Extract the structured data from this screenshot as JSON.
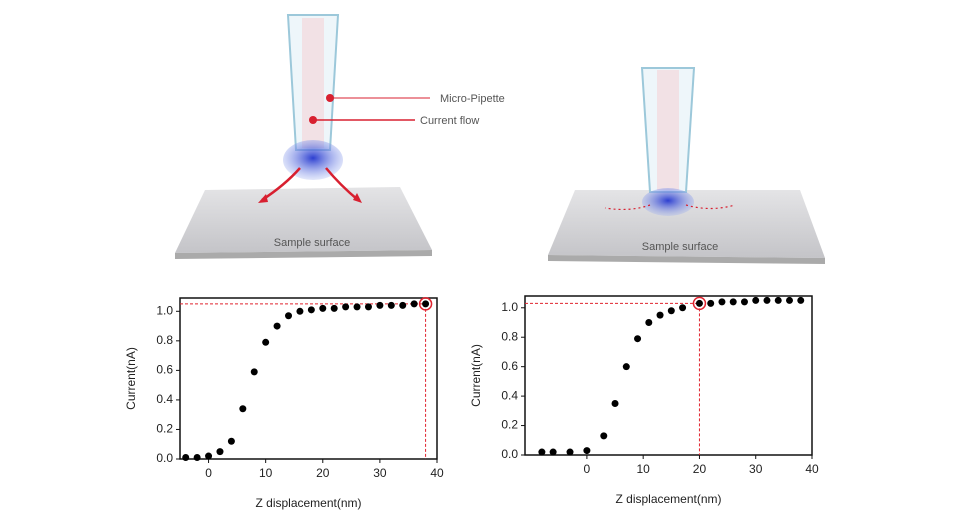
{
  "illustrations": [
    {
      "labels": [
        "Micro-Pipette",
        "Current flow",
        "Sample surface"
      ]
    },
    {
      "labels": [
        "Sample surface"
      ]
    }
  ],
  "chart_data": [
    {
      "type": "scatter",
      "x_label": "Z displacement(nm)",
      "y_label": "Current(nA)",
      "color": "#000000",
      "reference_color": "#e0242f",
      "x": [
        -4,
        -2,
        0,
        2,
        4,
        6,
        8,
        10,
        12,
        14,
        16,
        18,
        20,
        22,
        24,
        26,
        28,
        30,
        32,
        34,
        36,
        38
      ],
      "values": [
        0.01,
        0.01,
        0.02,
        0.05,
        0.12,
        0.34,
        0.59,
        0.79,
        0.9,
        0.97,
        1.0,
        1.01,
        1.02,
        1.02,
        1.03,
        1.03,
        1.03,
        1.04,
        1.04,
        1.04,
        1.05,
        1.05
      ],
      "reference_point": {
        "x": 38,
        "y": 1.05
      },
      "xlim": [
        -5,
        40
      ],
      "ylim": [
        0,
        1.09
      ],
      "xticks": [
        0,
        10,
        20,
        30,
        40
      ],
      "yticks": [
        {
          "value": 0,
          "label": "0.0"
        },
        {
          "value": 0.2,
          "label": "0.2"
        },
        {
          "value": 0.4,
          "label": "0.4"
        },
        {
          "value": 0.6,
          "label": "0.6"
        },
        {
          "value": 0.8,
          "label": "0.8"
        },
        {
          "value": 1.0,
          "label": "1.0"
        }
      ]
    },
    {
      "type": "scatter",
      "x_label": "Z displacement(nm)",
      "y_label": "Current(nA)",
      "color": "#000000",
      "reference_color": "#e0242f",
      "x": [
        -8,
        -6,
        -3,
        0,
        3,
        5,
        7,
        9,
        11,
        13,
        15,
        17,
        20,
        22,
        24,
        26,
        28,
        30,
        32,
        34,
        36,
        38
      ],
      "values": [
        0.02,
        0.02,
        0.02,
        0.03,
        0.13,
        0.35,
        0.6,
        0.79,
        0.9,
        0.95,
        0.98,
        1.0,
        1.03,
        1.03,
        1.04,
        1.04,
        1.04,
        1.05,
        1.05,
        1.05,
        1.05,
        1.05
      ],
      "reference_point": {
        "x": 20,
        "y": 1.03
      },
      "xlim": [
        -11,
        40
      ],
      "ylim": [
        0,
        1.08
      ],
      "xticks": [
        0,
        10,
        20,
        30,
        40
      ],
      "yticks": [
        {
          "value": 0,
          "label": "0.0"
        },
        {
          "value": 0.2,
          "label": "0.2"
        },
        {
          "value": 0.4,
          "label": "0.4"
        },
        {
          "value": 0.6,
          "label": "0.6"
        },
        {
          "value": 0.8,
          "label": "0.8"
        },
        {
          "value": 1.0,
          "label": "1.0"
        }
      ]
    }
  ]
}
